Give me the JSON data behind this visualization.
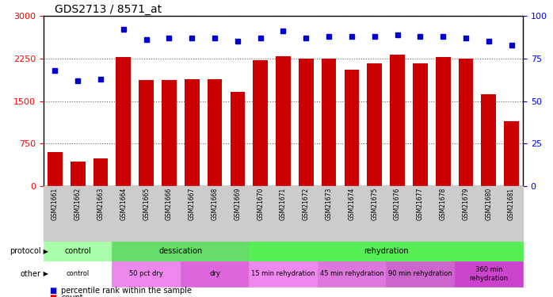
{
  "title": "GDS2713 / 8571_at",
  "samples": [
    "GSM21661",
    "GSM21662",
    "GSM21663",
    "GSM21664",
    "GSM21665",
    "GSM21666",
    "GSM21667",
    "GSM21668",
    "GSM21669",
    "GSM21670",
    "GSM21671",
    "GSM21672",
    "GSM21673",
    "GSM21674",
    "GSM21675",
    "GSM21676",
    "GSM21677",
    "GSM21678",
    "GSM21679",
    "GSM21680",
    "GSM21681"
  ],
  "counts": [
    600,
    430,
    490,
    2280,
    1870,
    1870,
    1880,
    1890,
    1660,
    2220,
    2290,
    2250,
    2250,
    2050,
    2160,
    2310,
    2160,
    2270,
    2250,
    1620,
    1150
  ],
  "percentile": [
    68,
    62,
    63,
    92,
    86,
    87,
    87,
    87,
    85,
    87,
    91,
    87,
    88,
    88,
    88,
    89,
    88,
    88,
    87,
    85,
    83
  ],
  "bar_color": "#cc0000",
  "dot_color": "#0000cc",
  "ylim_left": [
    0,
    3000
  ],
  "ylim_right": [
    0,
    100
  ],
  "yticks_left": [
    0,
    750,
    1500,
    2250,
    3000
  ],
  "yticks_right": [
    0,
    25,
    50,
    75,
    100
  ],
  "protocol_groups": [
    {
      "label": "control",
      "start": 0,
      "end": 3,
      "color": "#aaffaa"
    },
    {
      "label": "dessication",
      "start": 3,
      "end": 9,
      "color": "#66dd66"
    },
    {
      "label": "rehydration",
      "start": 9,
      "end": 21,
      "color": "#55ee55"
    }
  ],
  "other_groups": [
    {
      "label": "control",
      "start": 0,
      "end": 3,
      "color": "#ffffff"
    },
    {
      "label": "50 pct dry",
      "start": 3,
      "end": 6,
      "color": "#ee88ee"
    },
    {
      "label": "dry",
      "start": 6,
      "end": 9,
      "color": "#dd66dd"
    },
    {
      "label": "15 min rehydration",
      "start": 9,
      "end": 12,
      "color": "#ee88ee"
    },
    {
      "label": "45 min rehydration",
      "start": 12,
      "end": 15,
      "color": "#dd77dd"
    },
    {
      "label": "90 min rehydration",
      "start": 15,
      "end": 18,
      "color": "#cc66cc"
    },
    {
      "label": "360 min\nrehydration",
      "start": 18,
      "end": 21,
      "color": "#cc44cc"
    }
  ],
  "background_color": "#ffffff",
  "grid_color": "#666666",
  "tick_area_color": "#cccccc",
  "legend_square_red": "#cc0000",
  "legend_square_blue": "#0000cc"
}
